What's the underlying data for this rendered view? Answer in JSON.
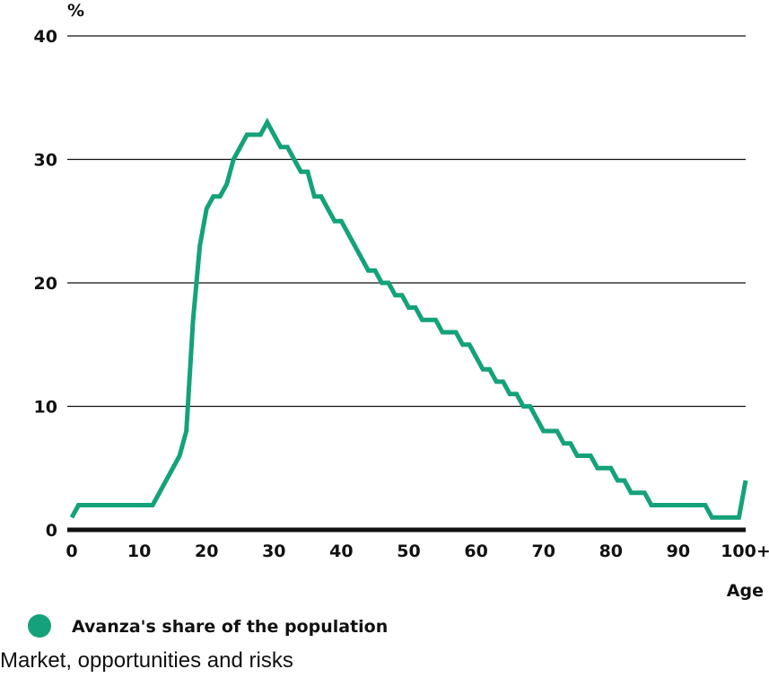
{
  "chart_data": {
    "type": "line",
    "title": "",
    "xlabel": "Age",
    "ylabel": "%",
    "xlim": [
      0,
      100
    ],
    "ylim": [
      0,
      40
    ],
    "x_ticks": [
      0,
      10,
      20,
      30,
      40,
      50,
      60,
      70,
      80,
      90,
      100
    ],
    "x_tick_labels": [
      "0",
      "10",
      "20",
      "30",
      "40",
      "50",
      "60",
      "70",
      "80",
      "90",
      "100+"
    ],
    "y_ticks": [
      0,
      10,
      20,
      30,
      40
    ],
    "y_tick_labels": [
      "0",
      "10",
      "20",
      "30",
      "40"
    ],
    "grid": "horizontal",
    "legend": "bottom-left",
    "series": [
      {
        "name": "Avanza's share of the population",
        "color": "#14a27a",
        "x": [
          0,
          1,
          2,
          3,
          4,
          5,
          6,
          7,
          8,
          9,
          10,
          11,
          12,
          13,
          14,
          15,
          16,
          17,
          18,
          19,
          20,
          21,
          22,
          23,
          24,
          25,
          26,
          27,
          28,
          29,
          30,
          31,
          32,
          33,
          34,
          35,
          36,
          37,
          38,
          39,
          40,
          41,
          42,
          43,
          44,
          45,
          46,
          47,
          48,
          49,
          50,
          51,
          52,
          53,
          54,
          55,
          56,
          57,
          58,
          59,
          60,
          61,
          62,
          63,
          64,
          65,
          66,
          67,
          68,
          69,
          70,
          71,
          72,
          73,
          74,
          75,
          76,
          77,
          78,
          79,
          80,
          81,
          82,
          83,
          84,
          85,
          86,
          87,
          88,
          89,
          90,
          91,
          92,
          93,
          94,
          95,
          96,
          97,
          98,
          99,
          100
        ],
        "values": [
          1,
          2,
          2,
          2,
          2,
          2,
          2,
          2,
          2,
          2,
          2,
          2,
          2,
          3,
          4,
          5,
          6,
          8,
          17,
          23,
          26,
          27,
          27,
          28,
          30,
          31,
          32,
          32,
          32,
          33,
          32,
          31,
          31,
          30,
          29,
          29,
          27,
          27,
          26,
          25,
          25,
          24,
          23,
          22,
          21,
          21,
          20,
          20,
          19,
          19,
          18,
          18,
          17,
          17,
          17,
          16,
          16,
          16,
          15,
          15,
          14,
          13,
          13,
          12,
          12,
          11,
          11,
          10,
          10,
          9,
          8,
          8,
          8,
          7,
          7,
          6,
          6,
          6,
          5,
          5,
          5,
          4,
          4,
          3,
          3,
          3,
          2,
          2,
          2,
          2,
          2,
          2,
          2,
          2,
          2,
          1,
          1,
          1,
          1,
          1,
          4
        ]
      }
    ]
  },
  "footer": {
    "text": "Market, opportunities and risks"
  }
}
